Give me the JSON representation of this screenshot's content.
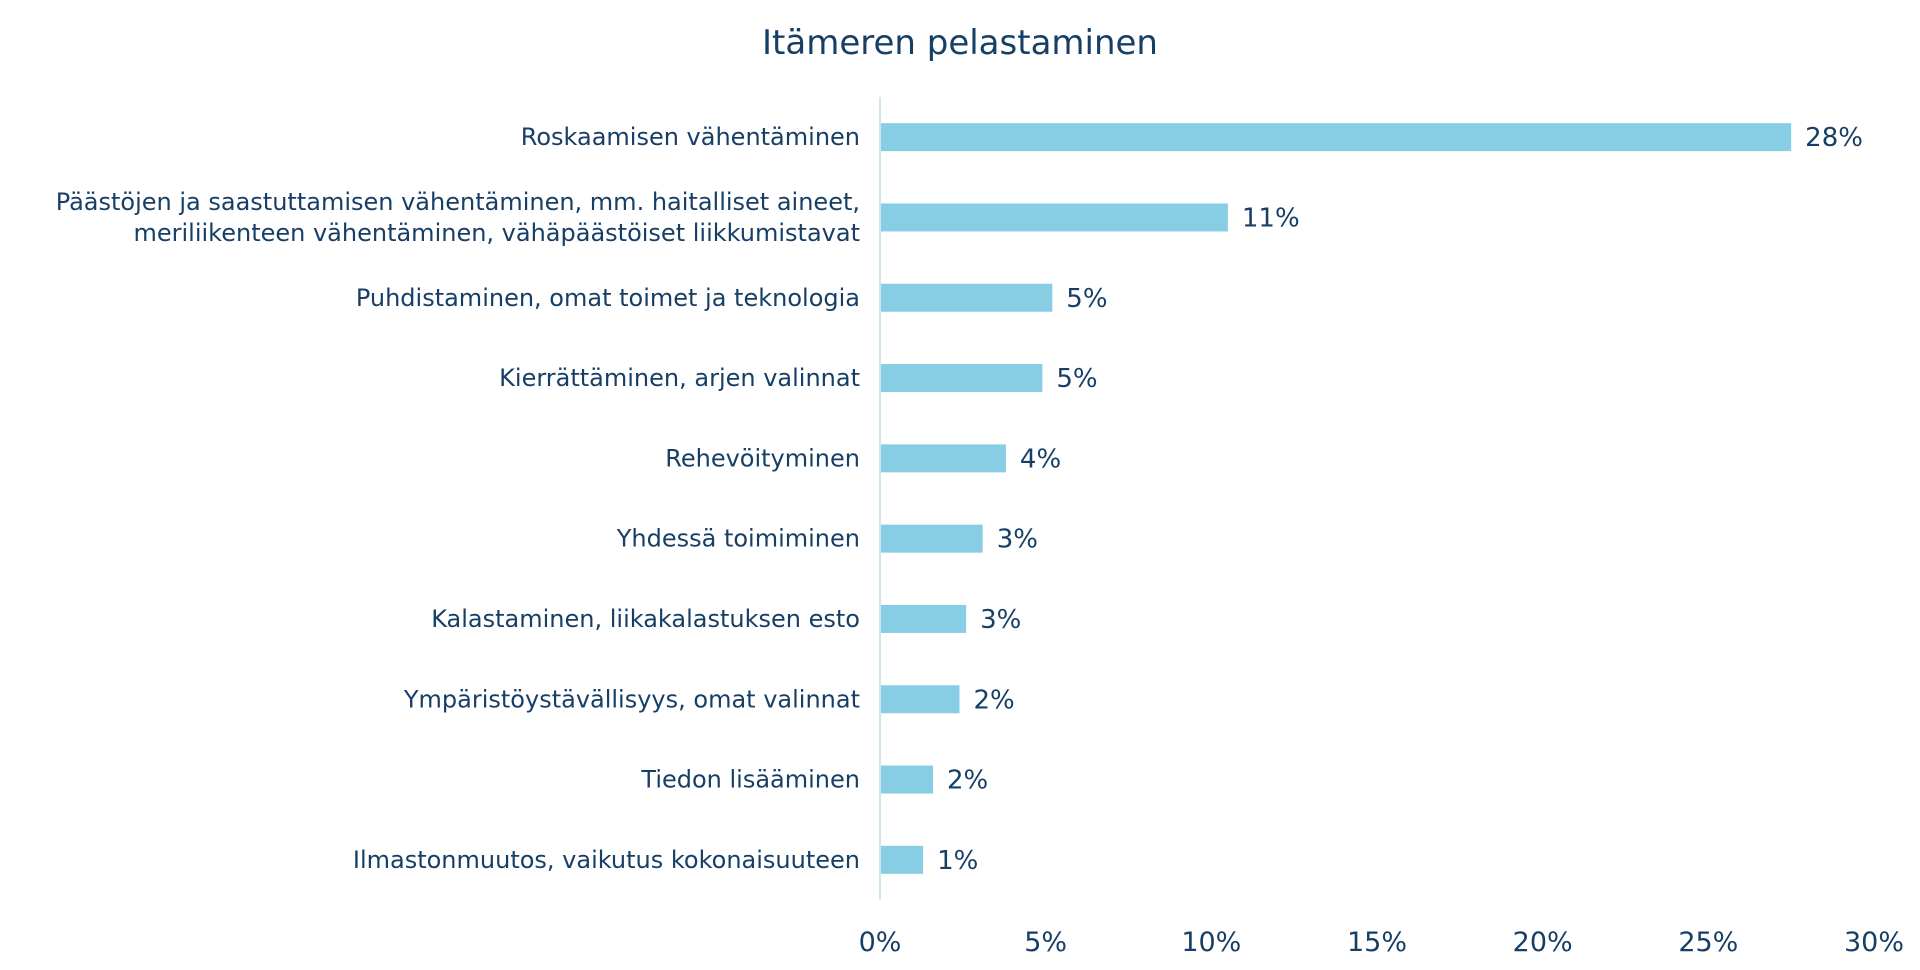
{
  "chart_data": {
    "type": "bar",
    "orientation": "horizontal",
    "title": "Itämeren pelastaminen",
    "categories": [
      [
        "Roskaamisen vähentäminen"
      ],
      [
        "Päästöjen ja saastuttamisen vähentäminen, mm. haitalliset aineet,",
        "meriliikenteen vähentäminen, vähäpäästöiset liikkumistavat"
      ],
      [
        "Puhdistaminen, omat toimet ja teknologia"
      ],
      [
        "Kierrättäminen, arjen valinnat"
      ],
      [
        "Rehevöityminen"
      ],
      [
        "Yhdessä toimiminen"
      ],
      [
        "Kalastaminen, liikakalastuksen esto"
      ],
      [
        "Ympäristöystävällisyys, omat valinnat"
      ],
      [
        "Tiedon lisääminen"
      ],
      [
        "Ilmastonmuutos, vaikutus kokonaisuuteen"
      ]
    ],
    "values": [
      27.5,
      10.5,
      5.2,
      4.9,
      3.8,
      3.1,
      2.6,
      2.4,
      1.6,
      1.3
    ],
    "data_labels": [
      "28%",
      "11%",
      "5%",
      "5%",
      "4%",
      "3%",
      "3%",
      "2%",
      "2%",
      "1%"
    ],
    "xlim": [
      0,
      30
    ],
    "xticks": [
      0,
      5,
      10,
      15,
      20,
      25,
      30
    ],
    "xtick_labels": [
      "0%",
      "5%",
      "10%",
      "15%",
      "20%",
      "25%",
      "30%"
    ],
    "xlabel": "",
    "ylabel": "",
    "grid": false,
    "legend": "none",
    "colors": {
      "bar": "#87cee4",
      "text": "#173f66",
      "axis": "#cde6f2"
    }
  }
}
